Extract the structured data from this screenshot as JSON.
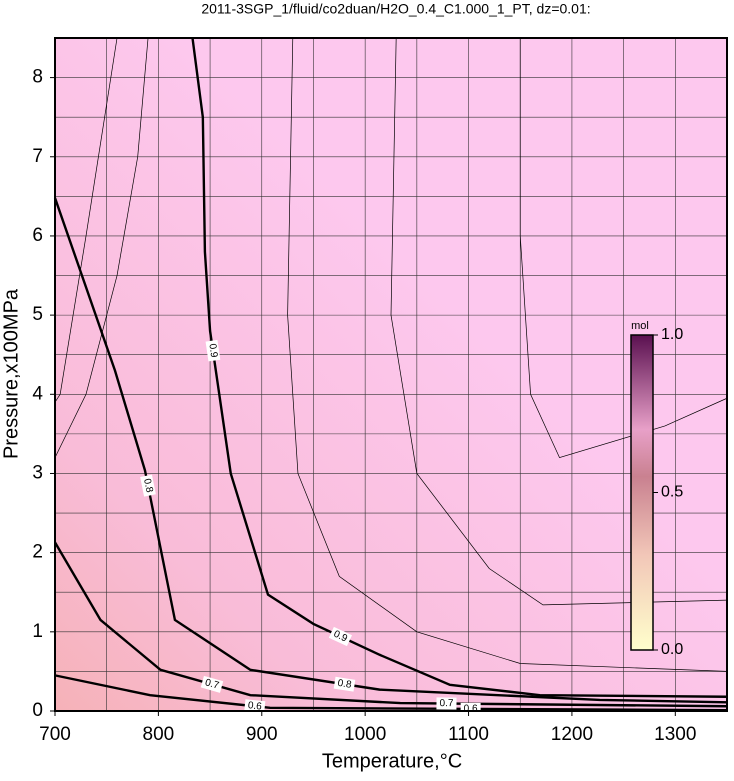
{
  "chart_data": {
    "type": "contour",
    "title": "2011-3SGP_1/fluid/co2duan/H2O_0.4_C1.000_1_PT, dz=0.01:",
    "xlabel": "Temperature,°C",
    "ylabel": "Pressure,x100MPa",
    "xlim": [
      700,
      1350
    ],
    "ylim": [
      0,
      8.5
    ],
    "xticks": [
      700,
      800,
      900,
      1000,
      1100,
      1200,
      1300
    ],
    "yticks": [
      0,
      1,
      2,
      3,
      4,
      5,
      6,
      7,
      8
    ],
    "xgrid_minor": [
      750,
      850,
      950,
      1050,
      1150,
      1250
    ],
    "ygrid_minor": [
      0.5,
      1.5,
      2.5,
      3.5,
      4.5,
      5.5,
      6.5,
      7.5
    ],
    "grid": true,
    "contours": [
      {
        "level": 0.9,
        "bold": true,
        "x": [
          833,
          843,
          845,
          850,
          870,
          906,
          950,
          1014,
          1082,
          1169,
          1350
        ],
        "y": [
          8.5,
          7.5,
          5.8,
          4.8,
          3,
          1.47,
          1.1,
          0.71,
          0.33,
          0.2,
          0.18
        ]
      },
      {
        "level": 0.8,
        "bold": true,
        "x": [
          700,
          758,
          787,
          816,
          889,
          1014,
          1227,
          1350
        ],
        "y": [
          6.48,
          4.3,
          3.04,
          1.15,
          0.52,
          0.27,
          0.14,
          0.11
        ]
      },
      {
        "level": 0.7,
        "bold": true,
        "x": [
          700,
          744,
          802,
          889,
          1034,
          1350
        ],
        "y": [
          2.13,
          1.15,
          0.52,
          0.2,
          0.1,
          0.06
        ]
      },
      {
        "level": 0.6,
        "bold": true,
        "x": [
          700,
          792,
          908,
          1350
        ],
        "y": [
          0.45,
          0.2,
          0.04,
          0.01
        ]
      },
      {
        "level": 0.82,
        "bold": false,
        "x": [
          760,
          730,
          705,
          700
        ],
        "y": [
          8.5,
          6,
          4,
          3.9
        ]
      },
      {
        "level": 0.85,
        "bold": false,
        "x": [
          790,
          780,
          760,
          730,
          700
        ],
        "y": [
          8.5,
          7,
          5.5,
          4,
          3.2
        ]
      },
      {
        "level": 0.92,
        "bold": false,
        "x": [
          930,
          925,
          935,
          975,
          1050,
          1150,
          1350
        ],
        "y": [
          8.5,
          5,
          3,
          1.7,
          1,
          0.6,
          0.5
        ]
      },
      {
        "level": 0.95,
        "bold": false,
        "x": [
          1030,
          1025,
          1050,
          1120,
          1172,
          1350
        ],
        "y": [
          8.5,
          5,
          3,
          1.8,
          1.34,
          1.4
        ]
      },
      {
        "level": 0.98,
        "bold": false,
        "x": [
          1150,
          1150,
          1160,
          1188,
          1290,
          1350
        ],
        "y": [
          8.5,
          6,
          4,
          3.2,
          3.6,
          3.95
        ]
      }
    ],
    "colorbar": {
      "label": "mol",
      "lim": [
        0,
        1
      ],
      "ticks": [
        {
          "value": 0,
          "label": "0.0"
        },
        {
          "value": 0.5,
          "label": "0.5"
        },
        {
          "value": 1,
          "label": "1.0"
        }
      ]
    }
  }
}
